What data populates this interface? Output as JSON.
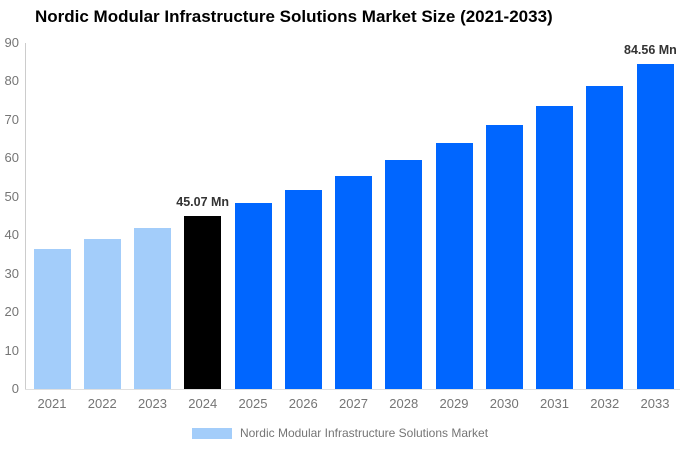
{
  "chart_data": {
    "type": "bar",
    "title": "Nordic Modular Infrastructure Solutions Market Size (2021-2033)",
    "unit": "Mn",
    "categories": [
      "2021",
      "2022",
      "2023",
      "2024",
      "2025",
      "2026",
      "2027",
      "2028",
      "2029",
      "2030",
      "2031",
      "2032",
      "2033"
    ],
    "values": [
      36.4,
      39.0,
      41.9,
      45.07,
      48.4,
      51.7,
      55.5,
      59.6,
      64.0,
      68.6,
      73.6,
      78.9,
      84.56
    ],
    "bar_colors": [
      "#A3CDFA",
      "#A3CDFA",
      "#A3CDFA",
      "#000000",
      "#0066FF",
      "#0066FF",
      "#0066FF",
      "#0066FF",
      "#0066FF",
      "#0066FF",
      "#0066FF",
      "#0066FF",
      "#0066FF"
    ],
    "annotations": [
      {
        "category": "2024",
        "text": "45.07 Mn"
      },
      {
        "category": "2033",
        "text": "84.56 Mn"
      }
    ],
    "ylim": [
      0,
      90
    ],
    "ytick_step": 10,
    "yticks": [
      "0",
      "10",
      "20",
      "30",
      "40",
      "50",
      "60",
      "70",
      "80",
      "90"
    ],
    "grid": false,
    "legend": {
      "position": "bottom",
      "label": "Nordic Modular Infrastructure Solutions Market",
      "swatch_color": "#A3CDFA"
    },
    "colors": {
      "historical_bar": "#A3CDFA",
      "highlight_bar": "#000000",
      "forecast_bar": "#0066FF",
      "axis_label": "#757575",
      "annotation": "#333333",
      "axis_line": "#CCCCCC",
      "baseline": "#E0E0E0",
      "title": "#000000",
      "background": "#FFFFFF"
    }
  }
}
